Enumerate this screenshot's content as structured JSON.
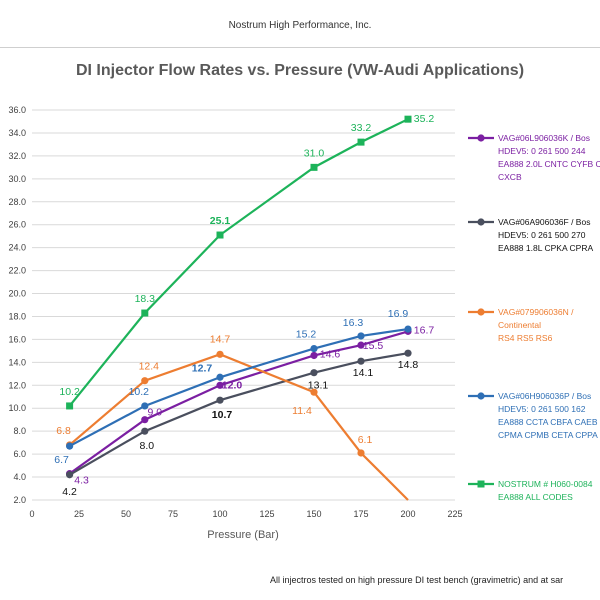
{
  "header": {
    "company": "Nostrum High Performance, Inc."
  },
  "footnote": "All injectros tested on high pressure DI test bench (gravimetric) and at sar",
  "chart_data": {
    "type": "line",
    "title": "DI Injector Flow Rates vs. Pressure (VW-Audi Applications)",
    "xlabel": "Pressure (Bar)",
    "ylabel": "",
    "xlim": [
      0,
      225
    ],
    "ylim": [
      2.0,
      36.0
    ],
    "x_ticks": [
      0,
      25,
      50,
      75,
      100,
      125,
      150,
      175,
      200,
      225
    ],
    "y_ticks": [
      2.0,
      4.0,
      6.0,
      8.0,
      10.0,
      12.0,
      14.0,
      16.0,
      18.0,
      20.0,
      22.0,
      24.0,
      26.0,
      28.0,
      30.0,
      32.0,
      34.0,
      36.0
    ],
    "grid": "horizontal",
    "legend_position": "right",
    "series": [
      {
        "name_lines": [
          "VAG#06L906036K / Bos",
          "HDEV5: 0 261 500 244",
          "EA888 2.0L CNTC CYFB C",
          "CXCB"
        ],
        "color": "#7B1FA2",
        "marker": "circle",
        "points": [
          [
            20,
            4.3
          ],
          [
            60,
            9.0
          ],
          [
            100,
            12.0
          ],
          [
            150,
            14.6
          ],
          [
            175,
            15.5
          ],
          [
            200,
            16.7
          ]
        ],
        "labels": [
          "4.3",
          "9.0",
          "12.0",
          "14.6",
          "15.5",
          "16.7"
        ]
      },
      {
        "name_lines": [
          "VAG#06A906036F / Bos",
          "HDEV5: 0 261 500 270",
          "EA888 1.8L CPKA CPRA"
        ],
        "color": "#4a4f5e",
        "marker": "circle",
        "points": [
          [
            20,
            4.2
          ],
          [
            60,
            8.0
          ],
          [
            100,
            10.7
          ],
          [
            150,
            13.1
          ],
          [
            175,
            14.1
          ],
          [
            200,
            14.8
          ]
        ],
        "labels": [
          "4.2",
          "8.0",
          "10.7",
          "13.1",
          "14.1",
          "14.8"
        ]
      },
      {
        "name_lines": [
          "VAG#079906036N /",
          "Continental",
          "RS4 RS5 RS6"
        ],
        "color": "#ED7D31",
        "marker": "circle",
        "points": [
          [
            20,
            6.8
          ],
          [
            60,
            12.4
          ],
          [
            100,
            14.7
          ],
          [
            150,
            11.4
          ],
          [
            175,
            6.1
          ],
          [
            200,
            1.5
          ]
        ],
        "labels": [
          "6.8",
          "12.4",
          "14.7",
          "11.4",
          "6.1",
          ""
        ]
      },
      {
        "name_lines": [
          "VAG#06H906036P / Bos",
          "HDEV5: 0 261 500 162",
          "EA888 CCTA CBFA CAEB",
          "CPMA CPMB CETA CPPA"
        ],
        "color": "#2E6FB5",
        "marker": "circle",
        "points": [
          [
            20,
            6.7
          ],
          [
            60,
            10.2
          ],
          [
            100,
            12.7
          ],
          [
            150,
            15.2
          ],
          [
            175,
            16.3
          ],
          [
            200,
            16.9
          ]
        ],
        "labels": [
          "6.7",
          "10.2",
          "12.7",
          "15.2",
          "16.3",
          "16.9"
        ]
      },
      {
        "name_lines": [
          "NOSTRUM # H060-0084",
          "EA888 ALL CODES"
        ],
        "color": "#1DB35A",
        "marker": "square",
        "points": [
          [
            20,
            10.2
          ],
          [
            60,
            18.3
          ],
          [
            100,
            25.1
          ],
          [
            150,
            31.0
          ],
          [
            175,
            33.2
          ],
          [
            200,
            35.2
          ]
        ],
        "labels": [
          "10.2",
          "18.3",
          "25.1",
          "31.0",
          "33.2",
          "35.2"
        ]
      }
    ]
  }
}
